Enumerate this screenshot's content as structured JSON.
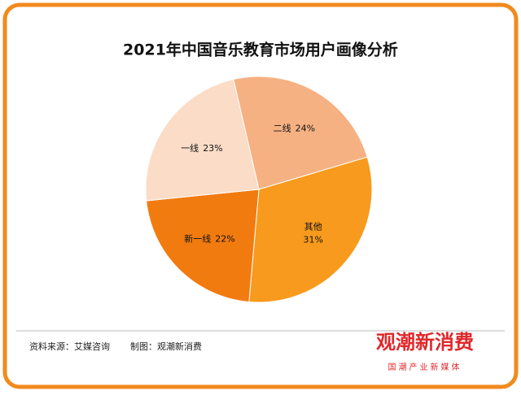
{
  "chart_data": {
    "type": "pie",
    "title": "2021年中国音乐教育市场用户画像分析",
    "categories": [
      "二线",
      "其他",
      "新一线",
      "一线"
    ],
    "values": [
      24,
      31,
      22,
      23
    ],
    "value_labels": [
      "24%",
      "31%",
      "22%",
      "23%"
    ],
    "colors": [
      "#f6b183",
      "#f79a1d",
      "#f27b10",
      "#fbdcc6"
    ]
  },
  "footer": {
    "source": "资料来源：艾媒咨询",
    "maker": "制图：观潮新消费",
    "logo": "观潮新消费",
    "logo_sub": "国潮产业新媒体"
  }
}
